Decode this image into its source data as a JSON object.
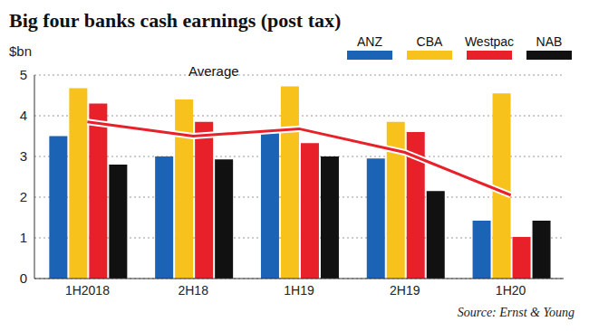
{
  "chart_data": {
    "type": "bar",
    "title": "Big four banks cash earnings (post tax)",
    "y_label": "$bn",
    "source": "Source: Ernst & Young",
    "categories": [
      "1H2018",
      "2H18",
      "1H19",
      "2H19",
      "1H20"
    ],
    "series": [
      {
        "name": "ANZ",
        "color": "#1b63b5",
        "values": [
          3.5,
          3.0,
          3.6,
          2.95,
          1.42
        ]
      },
      {
        "name": "CBA",
        "color": "#f7c21b",
        "values": [
          4.68,
          4.4,
          4.72,
          3.85,
          4.55
        ]
      },
      {
        "name": "Westpac",
        "color": "#e8202a",
        "values": [
          4.3,
          3.85,
          3.33,
          3.6,
          1.02
        ]
      },
      {
        "name": "NAB",
        "color": "#111111",
        "values": [
          2.8,
          2.93,
          3.0,
          2.15,
          1.42
        ]
      },
      {
        "name": "Average",
        "type": "line",
        "color": "#e8202a",
        "values": [
          3.85,
          3.5,
          3.68,
          3.1,
          2.05
        ]
      }
    ],
    "ylim": [
      0,
      5
    ],
    "yticks": [
      0,
      1,
      2,
      3,
      4,
      5
    ],
    "grid": true,
    "legend": "top-right"
  }
}
